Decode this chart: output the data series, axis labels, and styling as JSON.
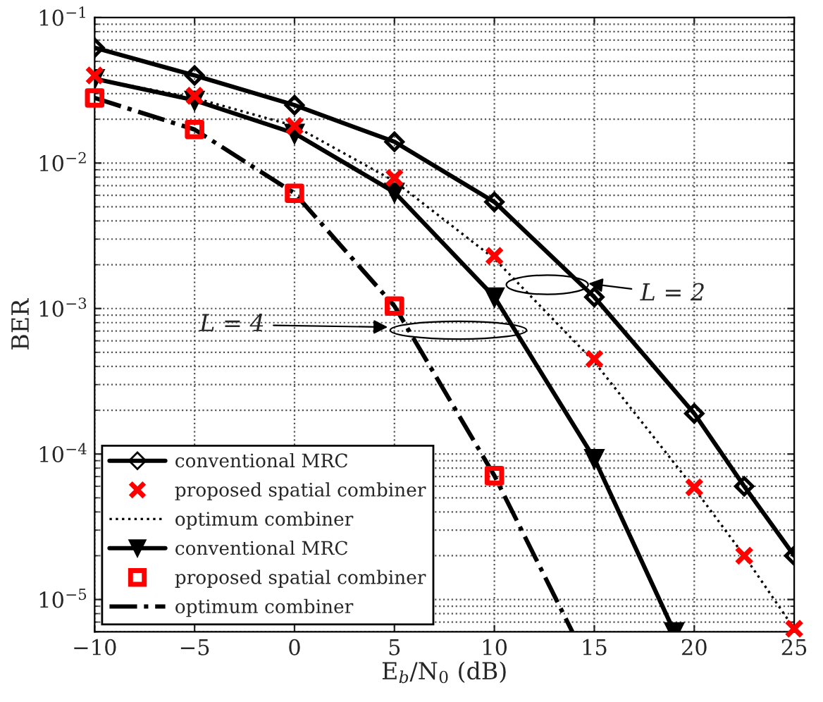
{
  "chart_data": {
    "type": "line",
    "xlabel": "E$_{b}$/N$_{0}$ (dB)",
    "ylabel": "BER",
    "xlim": [
      -10,
      25
    ],
    "xticks": [
      {
        "value": -10,
        "label": "−10"
      },
      {
        "value": -5,
        "label": "−5"
      },
      0,
      5,
      10,
      15,
      20,
      25
    ],
    "ylim": [
      6e-06,
      0.1
    ],
    "log": "y",
    "yticks": [
      {
        "value": 1e-05,
        "label": "10$^{−5}$"
      },
      {
        "value": 0.0001,
        "label": "10$^{−4}$"
      },
      {
        "value": 0.001,
        "label": "10$^{−3}$"
      },
      {
        "value": 0.01,
        "label": "10$^{−2}$"
      },
      {
        "value": 0.1,
        "label": "10$^{−1}$"
      }
    ],
    "grid": true,
    "legend": "bottom left",
    "series": [
      {
        "name": "conventional MRC",
        "color": "#000000",
        "marker": "diamond",
        "line_style": "solid",
        "x": [
          -10,
          -5,
          0,
          5,
          10,
          15,
          20,
          22.5,
          25
        ],
        "values": [
          0.062,
          0.04,
          0.025,
          0.014,
          0.0054,
          0.0012,
          0.00019,
          6e-05,
          2e-05
        ]
      },
      {
        "name": "proposed spatial combiner",
        "type": "scatter",
        "color": "#ff0000",
        "marker": "cross",
        "x": [
          -10,
          -5,
          0,
          5,
          10,
          15,
          20,
          22.5,
          25
        ],
        "values": [
          0.04,
          0.029,
          0.018,
          0.0079,
          0.0023,
          0.00045,
          5.9e-05,
          2e-05,
          6.3e-06
        ]
      },
      {
        "name": "optimum combiner",
        "color": "#000000",
        "marker": "none",
        "line_style": "dotted",
        "x": [
          -10,
          -5,
          0,
          5,
          10,
          15,
          20,
          22.5,
          25
        ],
        "values": [
          0.038,
          0.028,
          0.018,
          0.0075,
          0.0022,
          0.00043,
          5.8e-05,
          2e-05,
          6.3e-06
        ]
      },
      {
        "name": "conventional MRC",
        "color": "#000000",
        "marker": "triangle",
        "line_style": "solid",
        "x": [
          -10,
          -5,
          0,
          5,
          10,
          15,
          19
        ],
        "values": [
          0.038,
          0.027,
          0.016,
          0.0063,
          0.0012,
          9.3e-05,
          6e-06
        ]
      },
      {
        "name": "proposed spatial combiner",
        "type": "scatter",
        "color": "#ff0000",
        "marker": "square",
        "x": [
          -10,
          -5,
          0,
          5,
          10
        ],
        "values": [
          0.028,
          0.017,
          0.0062,
          0.00104,
          7.1e-05
        ]
      },
      {
        "name": "optimum combiner",
        "color": "#000000",
        "marker": "none",
        "line_style": "dashdot",
        "x": [
          -10,
          -5,
          0,
          5,
          10,
          13.9
        ],
        "values": [
          0.028,
          0.017,
          0.0062,
          0.00104,
          7.1e-05,
          6e-06
        ]
      }
    ],
    "annotations": [
      "L = 2",
      "L = 4"
    ]
  }
}
